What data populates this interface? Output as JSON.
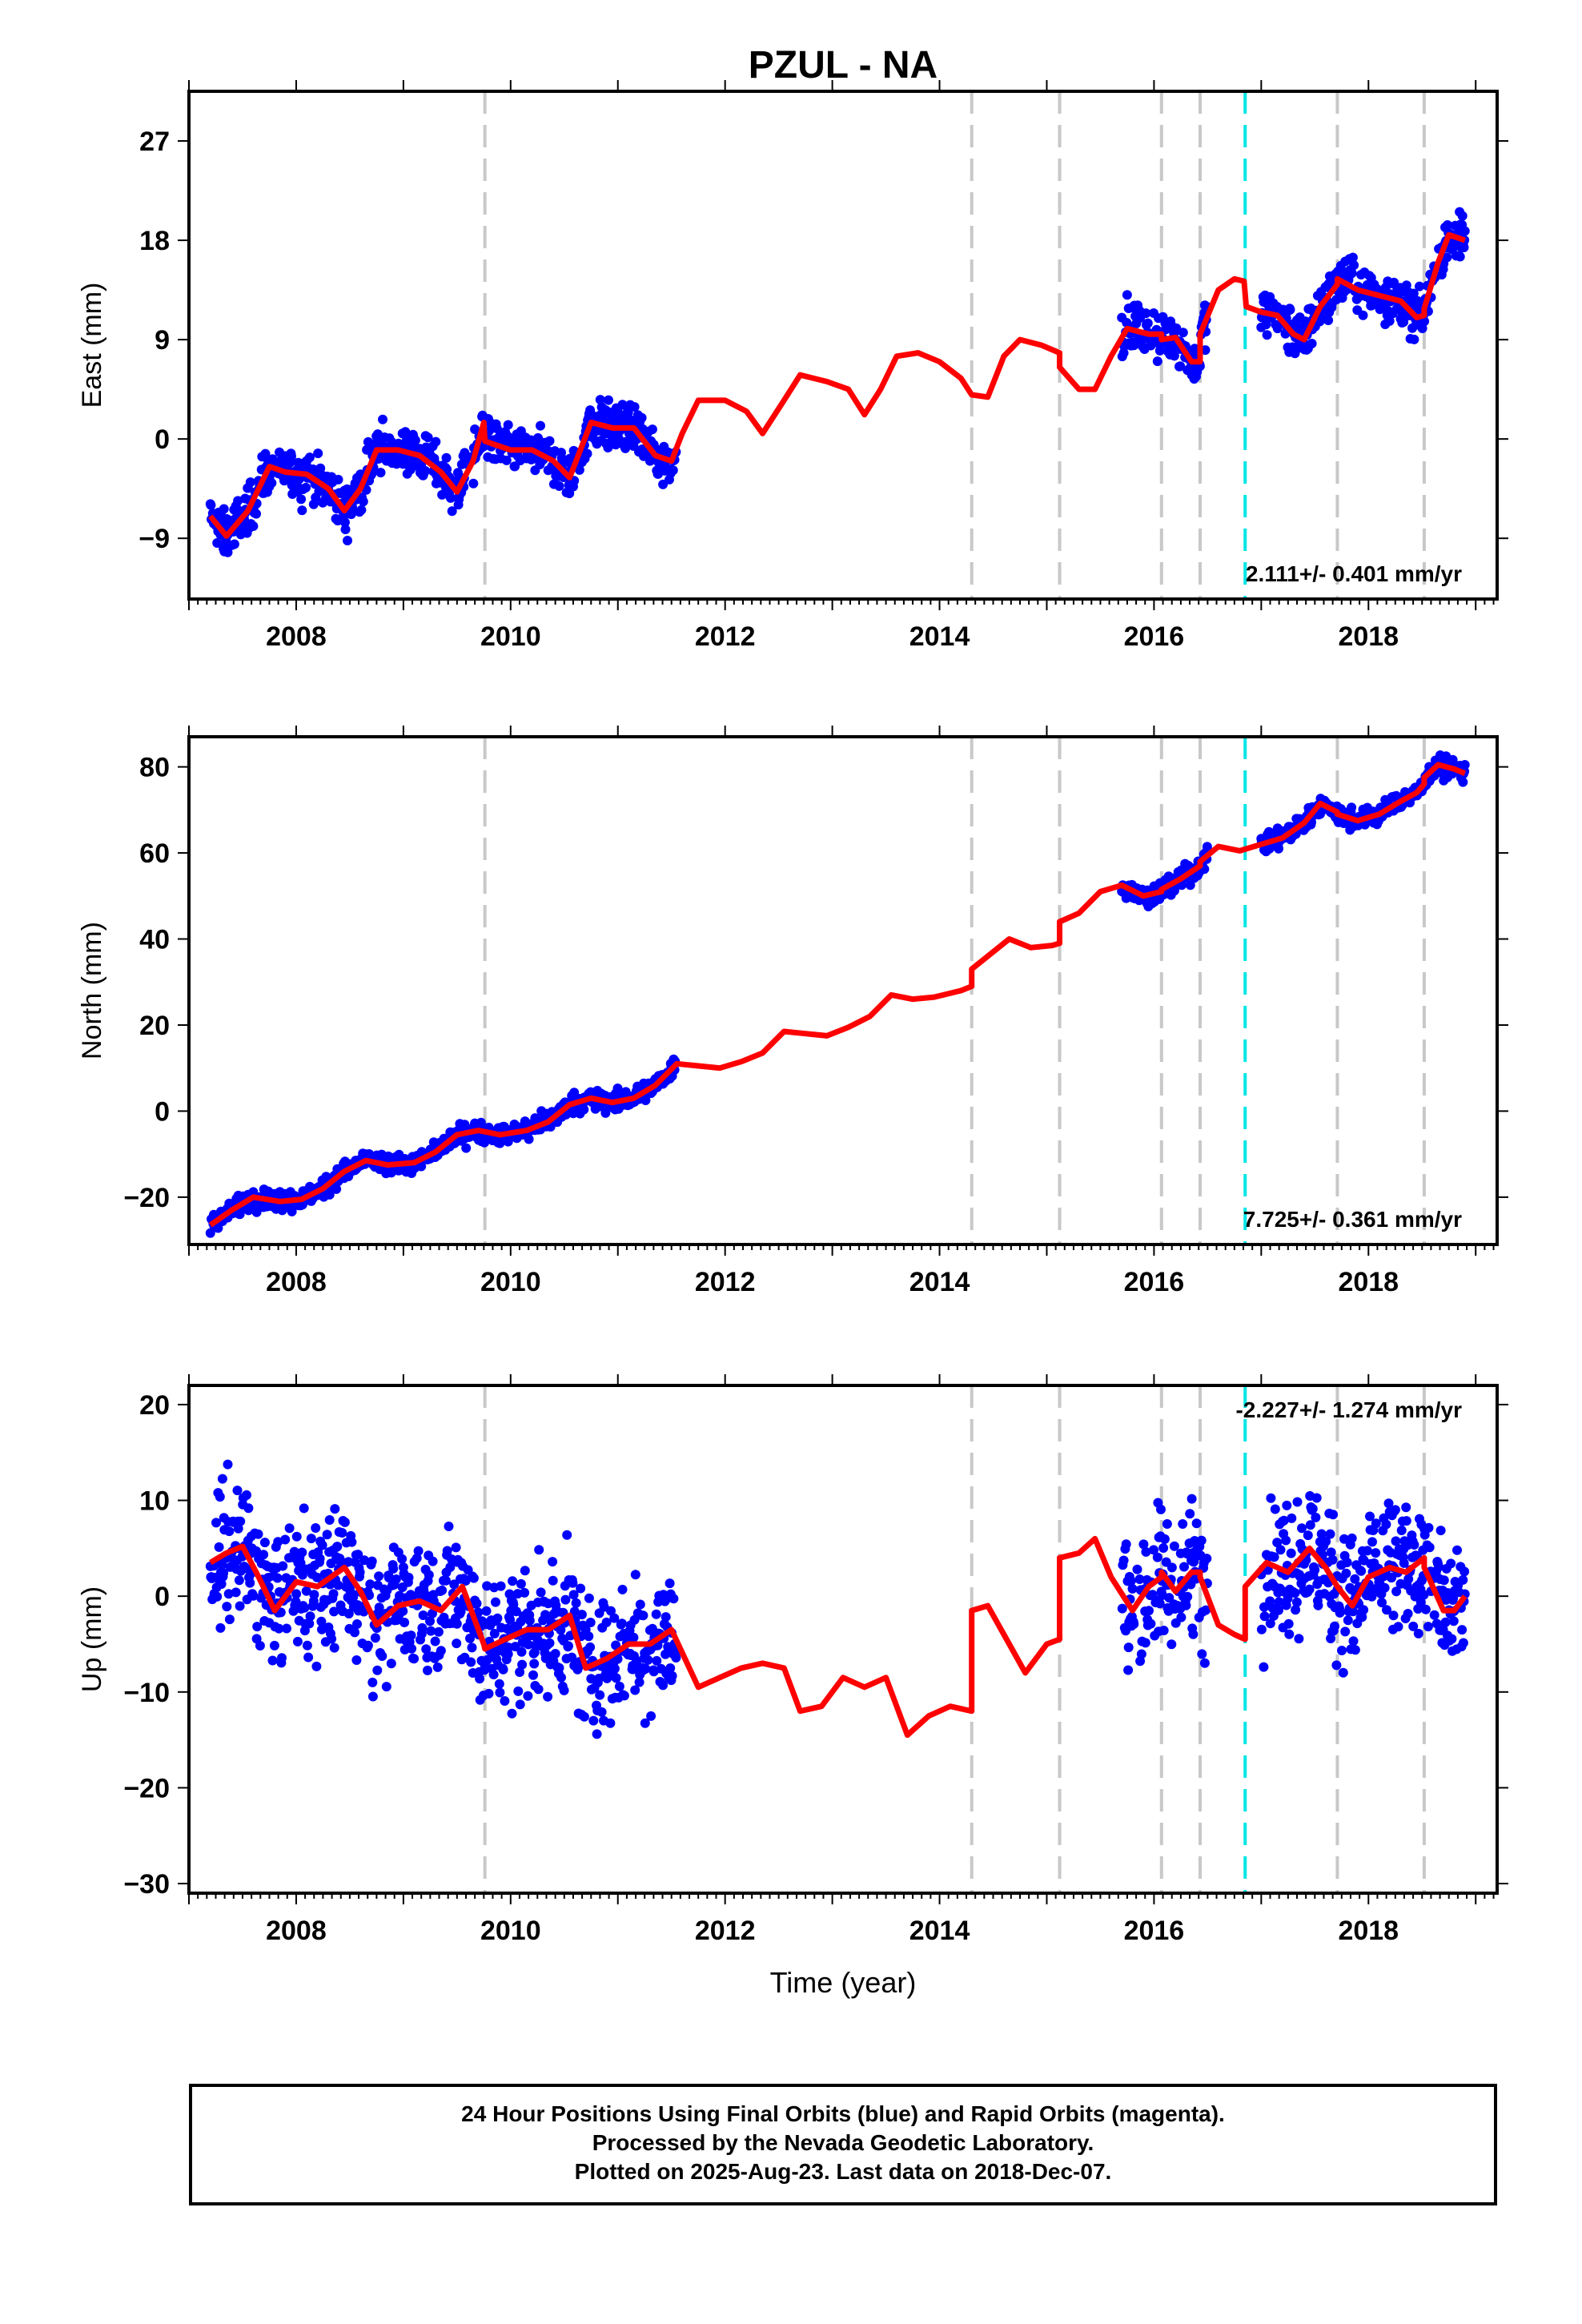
{
  "title": "PZUL - NA",
  "xlabel": "Time (year)",
  "caption": [
    "24 Hour Positions Using Final Orbits (blue) and Rapid Orbits (magenta).",
    "Processed by the Nevada Geodetic Laboratory.",
    "Plotted on 2025-Aug-23. Last data on 2018-Dec-07."
  ],
  "colors": {
    "data": "#0000ff",
    "model": "#ff0000",
    "offset_line": "#c8c8c8",
    "antenna_change_line": "#00e5e5",
    "frame": "#000000"
  },
  "offset_epochs": [
    2009.76,
    2014.3,
    2015.12,
    2016.07,
    2016.43,
    2017.71,
    2018.52
  ],
  "antenna_change_epochs": [
    2016.85
  ],
  "chart_data": [
    {
      "type": "scatter",
      "ylabel": "East (mm)",
      "rate_text": "2.111+/- 0.401 mm/yr",
      "xlim": [
        2007.0,
        2019.2
      ],
      "ylim": [
        -14.5,
        31.5
      ],
      "xticks": [
        2008,
        2010,
        2012,
        2014,
        2016,
        2018
      ],
      "yticks": [
        -9,
        0,
        9,
        18,
        27
      ],
      "data_segments": [
        [
          2007.2,
          2011.55
        ],
        [
          2015.7,
          2016.5
        ],
        [
          2017.0,
          2018.9
        ]
      ],
      "data_scatter_mm": 1.5,
      "model_points": [
        [
          2007.2,
          -7.0
        ],
        [
          2007.35,
          -8.8
        ],
        [
          2007.55,
          -6.5
        ],
        [
          2007.75,
          -2.5
        ],
        [
          2007.9,
          -3.0
        ],
        [
          2008.1,
          -3.2
        ],
        [
          2008.3,
          -4.5
        ],
        [
          2008.45,
          -6.5
        ],
        [
          2008.6,
          -4.5
        ],
        [
          2008.75,
          -1.0
        ],
        [
          2008.95,
          -1.0
        ],
        [
          2009.15,
          -1.5
        ],
        [
          2009.35,
          -3.0
        ],
        [
          2009.5,
          -4.8
        ],
        [
          2009.65,
          -2.0
        ],
        [
          2009.75,
          1.5
        ],
        [
          2009.76,
          -0.2
        ],
        [
          2010.0,
          -1.0
        ],
        [
          2010.2,
          -1.0
        ],
        [
          2010.4,
          -2.0
        ],
        [
          2010.55,
          -3.5
        ],
        [
          2010.75,
          1.5
        ],
        [
          2010.95,
          1.0
        ],
        [
          2011.15,
          1.0
        ],
        [
          2011.35,
          -1.5
        ],
        [
          2011.5,
          -2.0
        ],
        [
          2011.6,
          0.5
        ],
        [
          2011.75,
          3.5
        ],
        [
          2012.0,
          3.5
        ],
        [
          2012.2,
          2.5
        ],
        [
          2012.35,
          0.5
        ],
        [
          2012.55,
          3.5
        ],
        [
          2012.7,
          5.8
        ],
        [
          2012.95,
          5.2
        ],
        [
          2013.15,
          4.5
        ],
        [
          2013.3,
          2.2
        ],
        [
          2013.45,
          4.5
        ],
        [
          2013.6,
          7.5
        ],
        [
          2013.8,
          7.8
        ],
        [
          2014.0,
          7.0
        ],
        [
          2014.2,
          5.5
        ],
        [
          2014.3,
          4.0
        ],
        [
          2014.45,
          3.8
        ],
        [
          2014.6,
          7.5
        ],
        [
          2014.75,
          9.0
        ],
        [
          2014.95,
          8.5
        ],
        [
          2015.12,
          7.8
        ],
        [
          2015.12,
          6.5
        ],
        [
          2015.3,
          4.5
        ],
        [
          2015.45,
          4.5
        ],
        [
          2015.6,
          7.5
        ],
        [
          2015.75,
          10.0
        ],
        [
          2015.95,
          9.5
        ],
        [
          2016.07,
          9.5
        ],
        [
          2016.07,
          9.0
        ],
        [
          2016.2,
          9.2
        ],
        [
          2016.35,
          7.0
        ],
        [
          2016.43,
          7.0
        ],
        [
          2016.43,
          9.5
        ],
        [
          2016.6,
          13.5
        ],
        [
          2016.75,
          14.5
        ],
        [
          2016.84,
          14.3
        ],
        [
          2016.86,
          12.0
        ],
        [
          2017.0,
          11.5
        ],
        [
          2017.15,
          11.2
        ],
        [
          2017.3,
          9.5
        ],
        [
          2017.4,
          9.0
        ],
        [
          2017.55,
          12.0
        ],
        [
          2017.71,
          14.0
        ],
        [
          2017.71,
          14.5
        ],
        [
          2017.9,
          13.5
        ],
        [
          2018.1,
          13.0
        ],
        [
          2018.3,
          12.5
        ],
        [
          2018.45,
          11.0
        ],
        [
          2018.52,
          11.2
        ],
        [
          2018.52,
          11.8
        ],
        [
          2018.65,
          16.0
        ],
        [
          2018.75,
          18.5
        ],
        [
          2018.9,
          18.0
        ]
      ]
    },
    {
      "type": "scatter",
      "ylabel": "North (mm)",
      "rate_text": "7.725+/- 0.361 mm/yr",
      "xlim": [
        2007.0,
        2019.2
      ],
      "ylim": [
        -31,
        87
      ],
      "xticks": [
        2008,
        2010,
        2012,
        2014,
        2016,
        2018
      ],
      "yticks": [
        -20,
        0,
        20,
        40,
        60,
        80
      ],
      "data_segments": [
        [
          2007.2,
          2011.55
        ],
        [
          2015.7,
          2016.5
        ],
        [
          2017.0,
          2018.9
        ]
      ],
      "data_scatter_mm": 1.6,
      "model_points": [
        [
          2007.2,
          -26.5
        ],
        [
          2007.4,
          -23.0
        ],
        [
          2007.6,
          -20.0
        ],
        [
          2007.85,
          -21.0
        ],
        [
          2008.05,
          -20.5
        ],
        [
          2008.25,
          -18.0
        ],
        [
          2008.45,
          -14.0
        ],
        [
          2008.65,
          -11.5
        ],
        [
          2008.85,
          -12.5
        ],
        [
          2009.1,
          -12.0
        ],
        [
          2009.3,
          -9.5
        ],
        [
          2009.5,
          -5.5
        ],
        [
          2009.7,
          -4.5
        ],
        [
          2009.9,
          -5.5
        ],
        [
          2010.15,
          -4.5
        ],
        [
          2010.35,
          -2.5
        ],
        [
          2010.55,
          1.5
        ],
        [
          2010.75,
          3.0
        ],
        [
          2010.95,
          2.0
        ],
        [
          2011.15,
          3.0
        ],
        [
          2011.35,
          6.0
        ],
        [
          2011.55,
          11.0
        ],
        [
          2011.75,
          10.5
        ],
        [
          2011.95,
          10.0
        ],
        [
          2012.15,
          11.5
        ],
        [
          2012.35,
          13.5
        ],
        [
          2012.55,
          18.5
        ],
        [
          2012.75,
          18.0
        ],
        [
          2012.95,
          17.5
        ],
        [
          2013.15,
          19.5
        ],
        [
          2013.35,
          22.0
        ],
        [
          2013.55,
          27.0
        ],
        [
          2013.75,
          26.0
        ],
        [
          2013.95,
          26.5
        ],
        [
          2014.2,
          28.0
        ],
        [
          2014.3,
          29.0
        ],
        [
          2014.3,
          33.0
        ],
        [
          2014.45,
          36.0
        ],
        [
          2014.65,
          40.0
        ],
        [
          2014.85,
          38.0
        ],
        [
          2015.05,
          38.5
        ],
        [
          2015.12,
          39.0
        ],
        [
          2015.12,
          44.0
        ],
        [
          2015.3,
          46.0
        ],
        [
          2015.5,
          51.0
        ],
        [
          2015.7,
          52.5
        ],
        [
          2015.9,
          50.0
        ],
        [
          2016.07,
          51.0
        ],
        [
          2016.07,
          51.5
        ],
        [
          2016.25,
          54.0
        ],
        [
          2016.43,
          57.0
        ],
        [
          2016.43,
          58.0
        ],
        [
          2016.6,
          61.5
        ],
        [
          2016.8,
          60.5
        ],
        [
          2017.0,
          62.0
        ],
        [
          2017.2,
          63.5
        ],
        [
          2017.4,
          67.0
        ],
        [
          2017.55,
          71.5
        ],
        [
          2017.71,
          69.5
        ],
        [
          2017.71,
          69.0
        ],
        [
          2017.9,
          67.5
        ],
        [
          2018.1,
          69.0
        ],
        [
          2018.3,
          72.0
        ],
        [
          2018.45,
          74.0
        ],
        [
          2018.52,
          76.0
        ],
        [
          2018.52,
          77.5
        ],
        [
          2018.65,
          80.5
        ],
        [
          2018.8,
          79.5
        ],
        [
          2018.9,
          78.5
        ]
      ]
    },
    {
      "type": "scatter",
      "ylabel": "Up (mm)",
      "rate_text": "-2.227+/- 1.274 mm/yr",
      "xlim": [
        2007.0,
        2019.2
      ],
      "ylim": [
        -31,
        22
      ],
      "xticks": [
        2008,
        2010,
        2012,
        2014,
        2016,
        2018
      ],
      "yticks": [
        -30,
        -20,
        -10,
        0,
        10,
        20
      ],
      "data_segments": [
        [
          2007.2,
          2011.55
        ],
        [
          2015.7,
          2016.5
        ],
        [
          2017.0,
          2018.9
        ]
      ],
      "data_scatter_mm": 5.0,
      "model_points": [
        [
          2007.2,
          3.5
        ],
        [
          2007.35,
          4.5
        ],
        [
          2007.5,
          5.2
        ],
        [
          2007.65,
          2.0
        ],
        [
          2007.8,
          -1.5
        ],
        [
          2008.0,
          1.5
        ],
        [
          2008.2,
          1.0
        ],
        [
          2008.45,
          3.0
        ],
        [
          2008.6,
          0.5
        ],
        [
          2008.75,
          -3.0
        ],
        [
          2008.95,
          -1.0
        ],
        [
          2009.15,
          -0.5
        ],
        [
          2009.35,
          -1.5
        ],
        [
          2009.55,
          1.0
        ],
        [
          2009.75,
          -5.0
        ],
        [
          2009.76,
          -5.5
        ],
        [
          2009.95,
          -4.5
        ],
        [
          2010.15,
          -3.5
        ],
        [
          2010.35,
          -3.5
        ],
        [
          2010.55,
          -2.0
        ],
        [
          2010.7,
          -7.5
        ],
        [
          2010.9,
          -6.5
        ],
        [
          2011.1,
          -5.0
        ],
        [
          2011.3,
          -5.0
        ],
        [
          2011.5,
          -3.5
        ],
        [
          2011.75,
          -9.5
        ],
        [
          2011.95,
          -8.5
        ],
        [
          2012.15,
          -7.5
        ],
        [
          2012.35,
          -7.0
        ],
        [
          2012.55,
          -7.5
        ],
        [
          2012.7,
          -12.0
        ],
        [
          2012.9,
          -11.5
        ],
        [
          2013.1,
          -8.5
        ],
        [
          2013.3,
          -9.5
        ],
        [
          2013.5,
          -8.5
        ],
        [
          2013.7,
          -14.5
        ],
        [
          2013.9,
          -12.5
        ],
        [
          2014.1,
          -11.5
        ],
        [
          2014.3,
          -12.0
        ],
        [
          2014.3,
          -1.5
        ],
        [
          2014.45,
          -1.0
        ],
        [
          2014.6,
          -4.0
        ],
        [
          2014.8,
          -8.0
        ],
        [
          2015.0,
          -5.0
        ],
        [
          2015.12,
          -4.5
        ],
        [
          2015.12,
          4.0
        ],
        [
          2015.3,
          4.5
        ],
        [
          2015.45,
          6.0
        ],
        [
          2015.6,
          2.0
        ],
        [
          2015.8,
          -1.5
        ],
        [
          2015.95,
          1.0
        ],
        [
          2016.07,
          2.0
        ],
        [
          2016.07,
          2.5
        ],
        [
          2016.2,
          0.5
        ],
        [
          2016.35,
          2.5
        ],
        [
          2016.43,
          2.5
        ],
        [
          2016.43,
          2.0
        ],
        [
          2016.6,
          -3.0
        ],
        [
          2016.75,
          -4.0
        ],
        [
          2016.85,
          -4.5
        ],
        [
          2016.85,
          1.0
        ],
        [
          2017.05,
          3.5
        ],
        [
          2017.25,
          2.5
        ],
        [
          2017.45,
          5.0
        ],
        [
          2017.6,
          3.0
        ],
        [
          2017.71,
          1.0
        ],
        [
          2017.71,
          1.0
        ],
        [
          2017.85,
          -1.0
        ],
        [
          2018.0,
          2.0
        ],
        [
          2018.2,
          3.0
        ],
        [
          2018.35,
          2.5
        ],
        [
          2018.52,
          4.0
        ],
        [
          2018.52,
          3.0
        ],
        [
          2018.7,
          -1.5
        ],
        [
          2018.8,
          -1.5
        ],
        [
          2018.9,
          0.0
        ]
      ]
    }
  ]
}
